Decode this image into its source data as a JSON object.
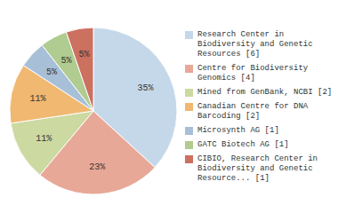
{
  "chart_data": {
    "type": "pie",
    "categories": [
      "Research Center in\nBiodiversity and Genetic\nResources [6]",
      "Centre for Biodiversity\nGenomics [4]",
      "Mined from GenBank, NCBI [2]",
      "Canadian Centre for DNA\nBarcoding [2]",
      "Microsynth AG [1]",
      "GATC Biotech AG [1]",
      "CIBIO, Research Center in\nBiodiversity and Genetic\nResource... [1]"
    ],
    "values": [
      35,
      23,
      11,
      11,
      5,
      5,
      5
    ],
    "value_labels": [
      "35%",
      "23%",
      "11%",
      "11%",
      "5%",
      "5%",
      "5%"
    ],
    "colors": [
      "#c5d8ea",
      "#e8a898",
      "#ccd9a0",
      "#f0b870",
      "#a8bfd8",
      "#b0cc90",
      "#cc7060"
    ],
    "data_labels": true,
    "legend": "right"
  }
}
